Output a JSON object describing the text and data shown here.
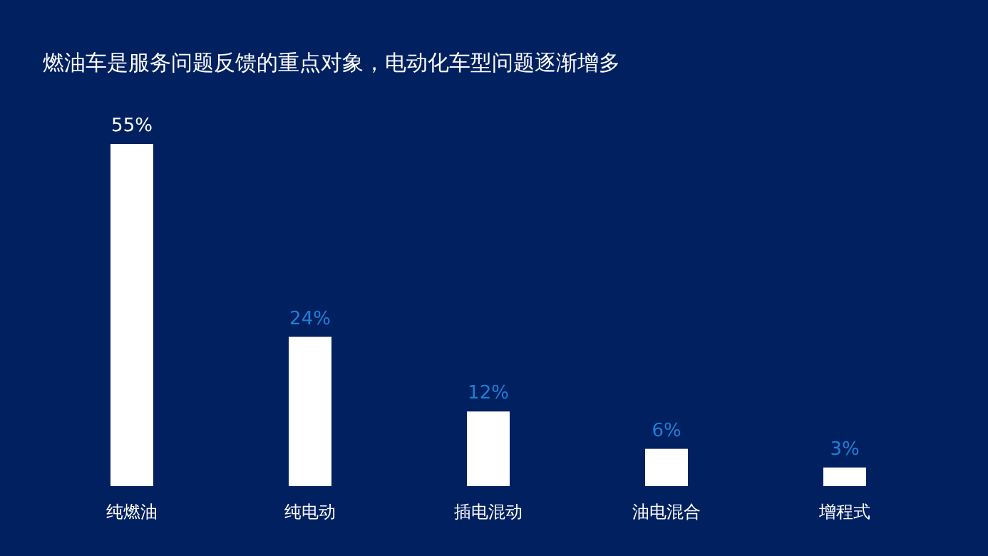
{
  "chart_data": {
    "type": "bar",
    "title": "燃油车是服务问题反馈的重点对象，电动化车型问题逐渐增多",
    "categories": [
      "纯燃油",
      "纯电动",
      "插电混动",
      "油电混合",
      "增程式"
    ],
    "values": [
      55,
      24,
      12,
      6,
      3
    ],
    "color": "#ffffff",
    "value_labels": [
      "55%",
      "24%",
      "12%",
      "6%",
      "3%"
    ]
  }
}
